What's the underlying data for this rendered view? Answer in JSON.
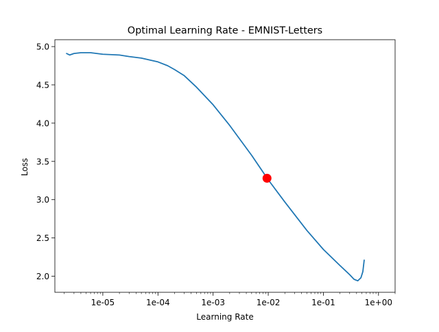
{
  "chart_data": {
    "type": "line",
    "title": "Optimal Learning Rate - EMNIST-Letters",
    "xlabel": "Learning Rate",
    "ylabel": "Loss",
    "xscale": "log",
    "xlim": [
      1.35e-06,
      2.0
    ],
    "ylim": [
      1.79,
      5.09
    ],
    "xticks": [
      {
        "value": 1e-05,
        "label": "1e-05"
      },
      {
        "value": 0.0001,
        "label": "1e-04"
      },
      {
        "value": 0.001,
        "label": "1e-03"
      },
      {
        "value": 0.01,
        "label": "1e-02"
      },
      {
        "value": 0.1,
        "label": "1e-01"
      },
      {
        "value": 1.0,
        "label": "1e+00"
      }
    ],
    "yticks": [
      {
        "value": 2.0,
        "label": "2.0"
      },
      {
        "value": 2.5,
        "label": "2.5"
      },
      {
        "value": 3.0,
        "label": "3.0"
      },
      {
        "value": 3.5,
        "label": "3.5"
      },
      {
        "value": 4.0,
        "label": "4.0"
      },
      {
        "value": 4.5,
        "label": "4.5"
      },
      {
        "value": 5.0,
        "label": "5.0"
      }
    ],
    "grid": false,
    "legend": "none",
    "series": [
      {
        "color": "#1f77b4",
        "x": [
          2.2e-06,
          2.5e-06,
          3e-06,
          4e-06,
          6e-06,
          1e-05,
          2e-05,
          3e-05,
          5e-05,
          0.0001,
          0.00015,
          0.0002,
          0.0003,
          0.0005,
          0.001,
          0.002,
          0.005,
          0.01,
          0.02,
          0.05,
          0.1,
          0.2,
          0.3,
          0.36,
          0.42,
          0.48,
          0.52,
          0.55
        ],
        "y": [
          4.91,
          4.89,
          4.91,
          4.92,
          4.92,
          4.9,
          4.89,
          4.87,
          4.85,
          4.8,
          4.75,
          4.7,
          4.62,
          4.47,
          4.24,
          3.97,
          3.58,
          3.26,
          2.97,
          2.6,
          2.35,
          2.14,
          2.02,
          1.96,
          1.94,
          1.98,
          2.06,
          2.21
        ]
      }
    ],
    "marker": {
      "x": 0.0095,
      "y": 3.28,
      "color": "#ff0000"
    }
  }
}
